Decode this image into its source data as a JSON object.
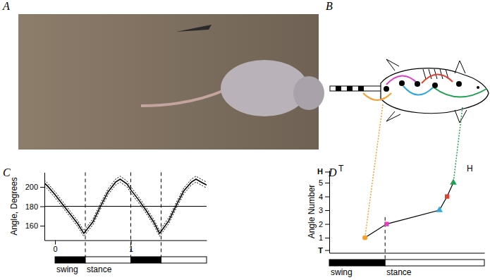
{
  "panel_labels": [
    "A",
    "B",
    "C",
    "D"
  ],
  "diagram": {
    "tail_label": "T",
    "head_label": "H"
  },
  "chart_data": [
    {
      "type": "line",
      "ylabel": "Angle, Degrees",
      "xlim": [
        -0.14,
        2.0
      ],
      "ylim": [
        145,
        215
      ],
      "xticks": [
        0,
        1
      ],
      "yticks": [
        160,
        180,
        200
      ],
      "hline": 180,
      "vlines": [
        0.4,
        1.0,
        1.4
      ],
      "x": [
        -0.14,
        -0.1,
        0,
        0.1,
        0.2,
        0.3,
        0.38,
        0.5,
        0.6,
        0.7,
        0.8,
        0.86,
        0.95,
        1.0,
        1.1,
        1.2,
        1.3,
        1.38,
        1.5,
        1.6,
        1.7,
        1.8,
        1.86,
        1.95,
        2.0
      ],
      "series": [
        {
          "values": [
            204,
            201,
            192,
            182,
            172,
            162,
            152,
            164,
            180,
            195,
            205,
            208,
            203,
            197,
            187,
            176,
            164,
            152,
            165,
            181,
            196,
            205,
            208,
            204,
            202
          ],
          "color": "#000000",
          "line_style": "solid"
        },
        {
          "values": [
            207,
            204,
            195,
            185,
            175,
            165,
            155,
            167,
            183,
            198,
            208,
            211,
            206,
            200,
            190,
            179,
            167,
            155,
            168,
            184,
            199,
            208,
            211,
            207,
            205
          ],
          "color": "#000000",
          "line_style": "dotted"
        },
        {
          "values": [
            201,
            198,
            189,
            179,
            169,
            159,
            149,
            161,
            177,
            192,
            202,
            205,
            200,
            194,
            184,
            173,
            161,
            149,
            162,
            178,
            193,
            202,
            205,
            201,
            199
          ],
          "color": "#000000",
          "line_style": "dotted"
        }
      ],
      "phases": [
        {
          "start": 0,
          "end": 0.4,
          "color": "#000000",
          "label": "swing"
        },
        {
          "start": 0.4,
          "end": 1.0,
          "color": "#ffffff",
          "label": "stance"
        },
        {
          "start": 1.0,
          "end": 1.4,
          "color": "#000000"
        },
        {
          "start": 1.4,
          "end": 2.0,
          "color": "#ffffff"
        }
      ]
    },
    {
      "type": "line",
      "ylabel": "Angle Number",
      "xlim": [
        0,
        1
      ],
      "ylim": [
        -0.1,
        5.9
      ],
      "yticks": [
        {
          "value": 0.1,
          "label": "T"
        },
        1,
        2,
        3,
        4,
        5,
        {
          "value": 5.8,
          "label": "H"
        }
      ],
      "tick_labels": "y",
      "vlines": [
        0.36
      ],
      "x": [
        0.23,
        0.37,
        0.71,
        0.76,
        0.8
      ],
      "series": [
        {
          "values": [
            1,
            2,
            3,
            4,
            5
          ],
          "color": "#000000",
          "line_style": "solid",
          "colors": [
            "#f5a030",
            "#e040c0",
            "#30a8e0",
            "#e04030",
            "#20a050"
          ]
        }
      ],
      "phases": [
        {
          "start": 0,
          "end": 0.36,
          "color": "#000000",
          "label": "swing"
        },
        {
          "start": 0.36,
          "end": 1,
          "color": "#ffffff",
          "label": "stance"
        }
      ]
    }
  ]
}
